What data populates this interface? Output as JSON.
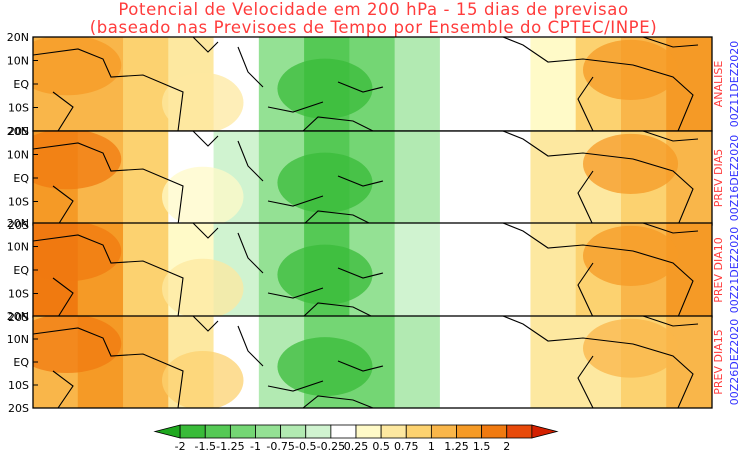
{
  "title": {
    "line1": "Potencial de Velocidade em 200 hPa - 15 dias de previsao",
    "line2": "(baseado nas Previsoes de Tempo por Ensemble do CPTEC/INPE)"
  },
  "colors": {
    "title_text": "#ff3b3b",
    "panel_label": "#ff3b3b",
    "date_label": "#3333ff"
  },
  "chart_data": {
    "type": "heatmap",
    "variable": "velocity potential at 200 hPa",
    "y_ticks": [
      "20N",
      "10N",
      "EQ",
      "10S",
      "20S"
    ],
    "panels": [
      {
        "label": "ANALISE",
        "date": "00Z11DEZ2020",
        "anomaly_profile": [
          1.0,
          1.0,
          0.9,
          0.5,
          0.0,
          -0.9,
          -1.4,
          -1.1,
          -0.6,
          -0.2,
          0.1,
          0.4,
          0.8,
          1.1,
          1.25
        ]
      },
      {
        "label": "PREV DIA5",
        "date": "00Z16DEZ2020",
        "anomaly_profile": [
          1.35,
          1.1,
          0.8,
          0.2,
          -0.3,
          -0.9,
          -1.35,
          -1.2,
          -0.7,
          -0.2,
          0.2,
          0.5,
          0.7,
          0.95,
          1.1
        ]
      },
      {
        "label": "PREV DIA10",
        "date": "00Z21DEZ2020",
        "anomaly_profile": [
          1.5,
          1.25,
          0.9,
          0.3,
          -0.3,
          -0.9,
          -1.3,
          -1.0,
          -0.5,
          -0.1,
          0.2,
          0.5,
          0.8,
          1.05,
          1.3
        ]
      },
      {
        "label": "PREV DIA15",
        "date": "00Z26DEZ2020",
        "anomaly_profile": [
          1.2,
          1.35,
          1.1,
          0.6,
          0.1,
          -0.6,
          -1.2,
          -1.1,
          -0.6,
          -0.2,
          0.2,
          0.5,
          0.7,
          0.9,
          1.0
        ]
      }
    ],
    "colorbar": {
      "ticks": [
        "-2",
        "-1.5",
        "-1.25",
        "-1",
        "-0.75",
        "-0.5",
        "-0.25",
        "0.25",
        "0.5",
        "0.75",
        "1",
        "1.25",
        "1.5",
        "2"
      ],
      "colors": [
        "#1fa81f",
        "#39bb39",
        "#55c955",
        "#74d674",
        "#94e194",
        "#b2eab2",
        "#d0f3d0",
        "#ffffff",
        "#fffac8",
        "#fde8a0",
        "#fcd270",
        "#f9b64a",
        "#f59a26",
        "#f07a10",
        "#e84a0a",
        "#d42000"
      ]
    }
  }
}
